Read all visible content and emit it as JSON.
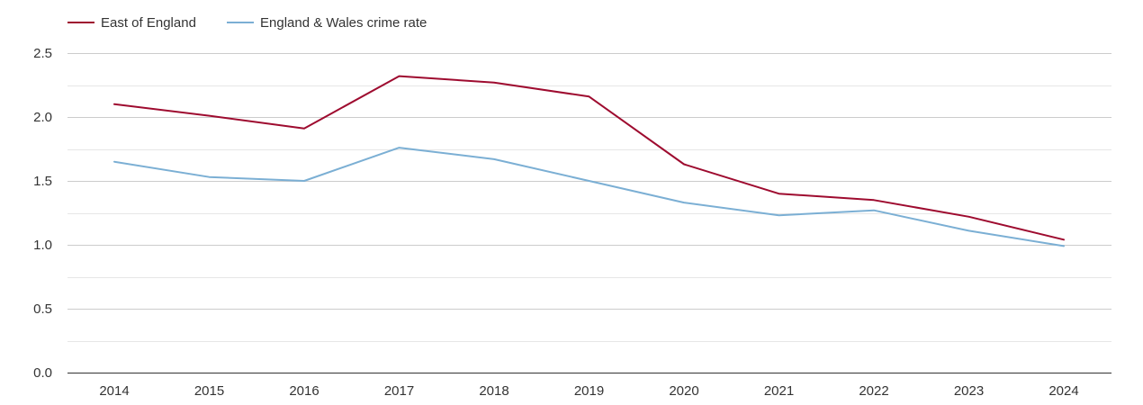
{
  "chart_data": {
    "type": "line",
    "title": "",
    "xlabel": "",
    "ylabel": "",
    "categories": [
      "2014",
      "2015",
      "2016",
      "2017",
      "2018",
      "2019",
      "2020",
      "2021",
      "2022",
      "2023",
      "2024"
    ],
    "ylim": [
      0,
      2.5
    ],
    "y_ticks": [
      "0.0",
      "0.5",
      "1.0",
      "1.5",
      "2.0",
      "2.5"
    ],
    "y_tick_values": [
      0,
      0.5,
      1.0,
      1.5,
      2.0,
      2.5
    ],
    "y_minor_step": 0.25,
    "grid": true,
    "legend_position": "top-left",
    "series": [
      {
        "name": "East of England",
        "color": "#9e0b2f",
        "values": [
          2.1,
          2.01,
          1.91,
          2.32,
          2.27,
          2.16,
          1.63,
          1.4,
          1.35,
          1.22,
          1.04
        ]
      },
      {
        "name": "England & Wales crime rate",
        "color": "#7bafd4",
        "values": [
          1.65,
          1.53,
          1.5,
          1.76,
          1.67,
          1.5,
          1.33,
          1.23,
          1.27,
          1.11,
          0.99
        ]
      }
    ]
  }
}
